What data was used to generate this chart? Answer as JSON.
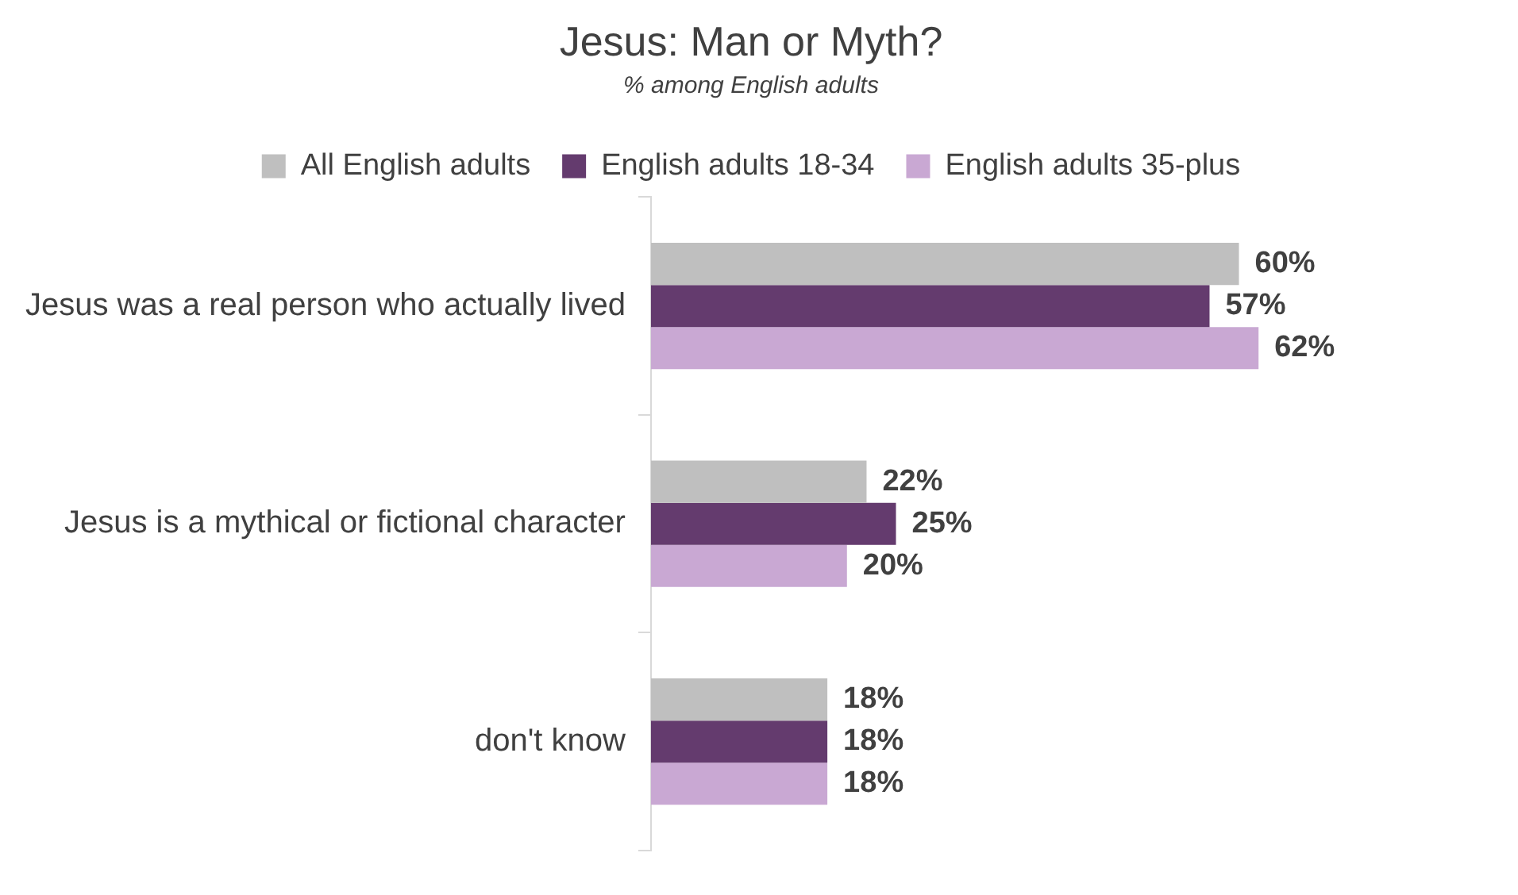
{
  "chart_data": {
    "type": "bar",
    "orientation": "horizontal",
    "title": "Jesus: Man or Myth?",
    "subtitle": "% among English adults",
    "categories": [
      "Jesus was a real person who actually lived",
      "Jesus is a mythical or fictional character",
      "don't know"
    ],
    "series": [
      {
        "name": "All English adults",
        "color": "#bfbfbf",
        "values": [
          60,
          22,
          18
        ],
        "value_labels": [
          "60%",
          "22%",
          "18%"
        ]
      },
      {
        "name": "English adults 18-34",
        "color": "#643b6e",
        "values": [
          57,
          25,
          18
        ],
        "value_labels": [
          "57%",
          "25%",
          "18%"
        ]
      },
      {
        "name": "English adults 35-plus",
        "color": "#c9a8d3",
        "values": [
          62,
          20,
          18
        ],
        "value_labels": [
          "62%",
          "20%",
          "18%"
        ]
      }
    ],
    "legend": "top",
    "tick_labels": "y"
  }
}
